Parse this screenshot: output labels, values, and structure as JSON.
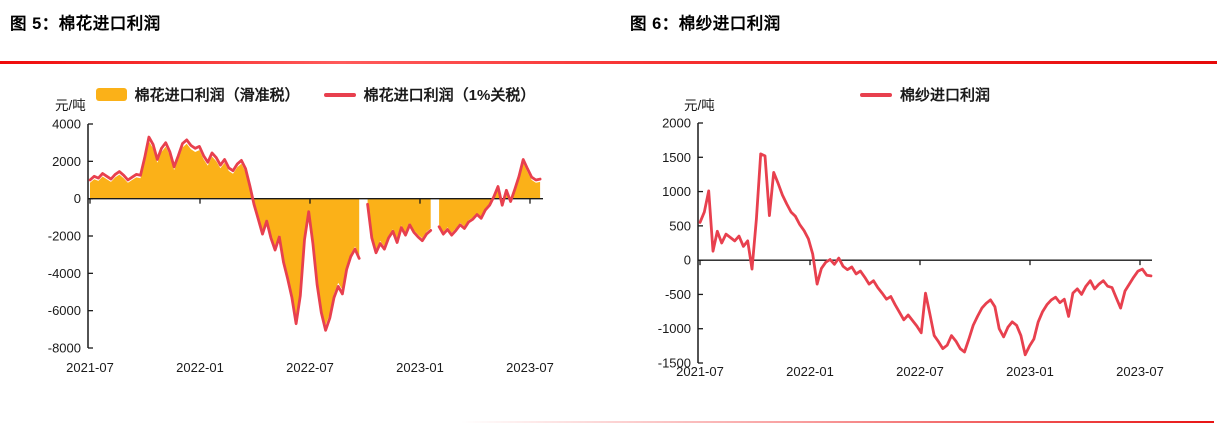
{
  "figures": [
    {
      "title": "图 5：棉花进口利润",
      "unit_label": "元/吨",
      "legend": [
        {
          "label": "棉花进口利润（滑准税）",
          "swatch": "area-swatch",
          "color": "#FBB118"
        },
        {
          "label": "棉花进口利润（1%关税）",
          "swatch": "line-swatch",
          "color": "#E8404E"
        }
      ]
    },
    {
      "title": "图 6：棉纱进口利润",
      "unit_label": "元/吨",
      "legend": [
        {
          "label": "棉纱进口利润",
          "swatch": "line-swatch",
          "color": "#E8404E"
        }
      ]
    }
  ],
  "colors": {
    "accent_red_rule": "#EE1010",
    "line_red": "#E8404E",
    "area_orange": "#FBB118",
    "axis_black": "#1A1A1A"
  },
  "chart_data": [
    {
      "type": "line",
      "title": "棉花进口利润",
      "ylabel": "元/吨",
      "xlabel": "",
      "grid": false,
      "legend_position": "top",
      "ylim": [
        -8000,
        4000
      ],
      "y_ticks": [
        4000,
        2000,
        0,
        -2000,
        -4000,
        -6000,
        -8000
      ],
      "x_tick_labels": [
        "2021-07",
        "2022-01",
        "2022-07",
        "2023-01",
        "2023-07"
      ],
      "x_tick_positions_months": [
        0,
        6,
        12,
        18,
        24
      ],
      "x_range_months": [
        0,
        24.55
      ],
      "series": [
        {
          "name": "棉花进口利润（滑准税）",
          "style": "area",
          "color": "#FBB118",
          "values": [
            850,
            1040,
            950,
            1190,
            1040,
            900,
            1140,
            1290,
            1090,
            850,
            1000,
            1140,
            1090,
            2010,
            3080,
            2690,
            1920,
            2500,
            2790,
            2310,
            1530,
            2110,
            2740,
            2940,
            2650,
            2500,
            2600,
            2110,
            1770,
            2260,
            2010,
            1630,
            1920,
            1480,
            1340,
            1680,
            1870,
            1430,
            560,
            -230,
            -1010,
            -1780,
            -1100,
            -1980,
            -2610,
            -1930,
            -3240,
            -4110,
            -5080,
            -6440,
            -4980,
            -2070,
            -620,
            -2270,
            -4400,
            -5860,
            -6780,
            -6150,
            -5080,
            -4500,
            -4890,
            -3630,
            -2950,
            -2560,
            -3040,
            null,
            -230,
            -1980,
            -2750,
            -2270,
            -2560,
            -1980,
            -1640,
            -2220,
            -1440,
            -1830,
            -1300,
            -1690,
            -1930,
            -2120,
            -1780,
            -1590,
            null,
            -1400,
            -1780,
            -1540,
            -1830,
            -1590,
            -1300,
            -1490,
            -1150,
            -1010,
            -770,
            -960,
            -520,
            -280,
            20,
            510,
            -280,
            320,
            -90,
            370,
            1040,
            1920,
            1430,
            1000,
            850,
            900
          ]
        },
        {
          "name": "棉花进口利润（1%关税）",
          "style": "line",
          "color": "#E8404E",
          "values": [
            1000,
            1200,
            1100,
            1350,
            1200,
            1050,
            1300,
            1450,
            1250,
            1000,
            1150,
            1300,
            1250,
            2200,
            3300,
            2900,
            2100,
            2700,
            3000,
            2500,
            1700,
            2300,
            2950,
            3150,
            2850,
            2700,
            2800,
            2300,
            1950,
            2450,
            2200,
            1800,
            2100,
            1650,
            1500,
            1850,
            2050,
            1600,
            700,
            -300,
            -1100,
            -1900,
            -1200,
            -2100,
            -2750,
            -2050,
            -3400,
            -4300,
            -5300,
            -6700,
            -5200,
            -2200,
            -700,
            -2400,
            -4600,
            -6100,
            -7050,
            -6400,
            -5300,
            -4700,
            -5100,
            -3800,
            -3100,
            -2700,
            -3200,
            null,
            -300,
            -2100,
            -2900,
            -2400,
            -2700,
            -2100,
            -1750,
            -2350,
            -1550,
            -1950,
            -1400,
            -1800,
            -2050,
            -2250,
            -1900,
            -1700,
            null,
            -1500,
            -1900,
            -1650,
            -1950,
            -1700,
            -1400,
            -1600,
            -1250,
            -1100,
            -850,
            -1050,
            -600,
            -350,
            100,
            650,
            -350,
            450,
            -150,
            500,
            1200,
            2100,
            1600,
            1150,
            1000,
            1050
          ]
        }
      ]
    },
    {
      "type": "line",
      "title": "棉纱进口利润",
      "ylabel": "元/吨",
      "xlabel": "",
      "grid": false,
      "legend_position": "top",
      "ylim": [
        -1500,
        2000
      ],
      "y_ticks": [
        2000,
        1500,
        1000,
        500,
        0,
        -500,
        -1000,
        -1500
      ],
      "x_tick_labels": [
        "2021-07",
        "2022-01",
        "2022-07",
        "2023-01",
        "2023-07"
      ],
      "x_tick_positions_months": [
        0,
        6,
        12,
        18,
        24
      ],
      "x_range_months": [
        0,
        24.6
      ],
      "series": [
        {
          "name": "棉纱进口利润",
          "style": "line",
          "color": "#E8404E",
          "values": [
            550,
            700,
            1010,
            130,
            420,
            250,
            380,
            330,
            280,
            350,
            200,
            280,
            -130,
            600,
            1550,
            1520,
            650,
            1280,
            1120,
            950,
            820,
            700,
            640,
            520,
            430,
            310,
            90,
            -350,
            -120,
            -30,
            10,
            -60,
            30,
            -90,
            -140,
            -100,
            -200,
            -160,
            -250,
            -350,
            -300,
            -400,
            -480,
            -570,
            -530,
            -650,
            -760,
            -870,
            -800,
            -880,
            -960,
            -1060,
            -480,
            -780,
            -1100,
            -1190,
            -1290,
            -1240,
            -1100,
            -1180,
            -1290,
            -1340,
            -1150,
            -950,
            -820,
            -700,
            -630,
            -580,
            -680,
            -1000,
            -1120,
            -980,
            -900,
            -950,
            -1100,
            -1380,
            -1250,
            -1150,
            -900,
            -750,
            -650,
            -580,
            -540,
            -620,
            -570,
            -820,
            -480,
            -420,
            -500,
            -380,
            -300,
            -420,
            -350,
            -300,
            -380,
            -400,
            -550,
            -700,
            -450,
            -350,
            -250,
            -160,
            -130,
            -220,
            -230
          ]
        }
      ]
    }
  ]
}
